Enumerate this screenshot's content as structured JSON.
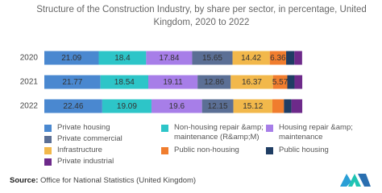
{
  "chart_data": {
    "type": "stacked-bar",
    "orientation": "horizontal",
    "title": "Structure of the Construction Industry, by share per sector, in percentage, United Kingdom, 2020 to 2022",
    "categories": [
      "2020",
      "2021",
      "2022"
    ],
    "xlim": [
      0,
      100
    ],
    "series": [
      {
        "name": "Private housing",
        "color": "#4a88d0",
        "values": [
          21.09,
          21.77,
          22.46
        ]
      },
      {
        "name": "Non-housing repair &amp; maintenance (R&amp;M)",
        "color": "#2dc5c8",
        "values": [
          18.4,
          18.54,
          19.09
        ]
      },
      {
        "name": "Housing repair &amp; maintenance",
        "color": "#a77ee8",
        "values": [
          17.84,
          19.11,
          19.6
        ]
      },
      {
        "name": "Private commercial",
        "color": "#5b6f95",
        "values": [
          15.65,
          12.86,
          12.15
        ]
      },
      {
        "name": "Infrastructure",
        "color": "#f2b84b",
        "values": [
          14.42,
          16.37,
          15.12
        ]
      },
      {
        "name": "Public non-housing",
        "color": "#f07d2e",
        "values": [
          6.36,
          5.57,
          4.5
        ]
      },
      {
        "name": "Public housing",
        "color": "#1f3d63",
        "values": [
          3.2,
          2.8,
          2.9
        ]
      },
      {
        "name": "Private industrial",
        "color": "#6d2a8a",
        "values": [
          3.0,
          3.0,
          4.2
        ]
      }
    ],
    "source_label": "Source:",
    "source": "Office for National Statistics (United Kingdom)"
  }
}
